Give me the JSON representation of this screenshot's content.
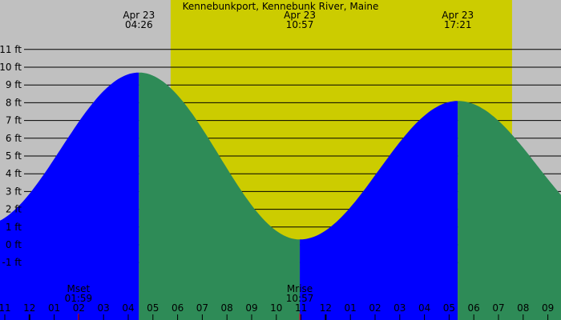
{
  "chart_data": {
    "type": "area",
    "title": "Kennebunkport, Kennebunk River, Maine",
    "unit": "ft",
    "y_ticks": [
      -1,
      0,
      1,
      2,
      3,
      4,
      5,
      6,
      7,
      8,
      9,
      10,
      11
    ],
    "y_tick_labels": [
      "-1 ft",
      "0 ft",
      "1 ft",
      "2 ft",
      "3 ft",
      "4 ft",
      "5 ft",
      "6 ft",
      "7 ft",
      "8 ft",
      "9 ft",
      "10 ft",
      "11 ft"
    ],
    "x_tick_labels": [
      "11",
      "12",
      "01",
      "02",
      "03",
      "04",
      "05",
      "06",
      "07",
      "08",
      "09",
      "10",
      "11",
      "12",
      "01",
      "02",
      "03",
      "04",
      "05",
      "06",
      "07",
      "08",
      "09"
    ],
    "grid": true,
    "extremes": [
      {
        "type": "high",
        "date": "Apr 23",
        "time": "04:26",
        "height_ft": 9.7
      },
      {
        "type": "low",
        "date": "Apr 23",
        "time": "10:57",
        "height_ft": 0.3
      },
      {
        "type": "high",
        "date": "Apr 23",
        "time": "17:21",
        "height_ft": 8.1
      }
    ],
    "daylight": {
      "sunrise": "05:43",
      "sunset": "19:33"
    },
    "moon_events": [
      {
        "label": "Mset",
        "time": "01:59"
      },
      {
        "label": "Mrise",
        "time": "10:57"
      }
    ],
    "colors": {
      "night": "#c0c0c0",
      "day": "#cccc00",
      "rising": "#0000ff",
      "falling": "#2e8b57",
      "moon_tick": "#ff0000"
    }
  }
}
